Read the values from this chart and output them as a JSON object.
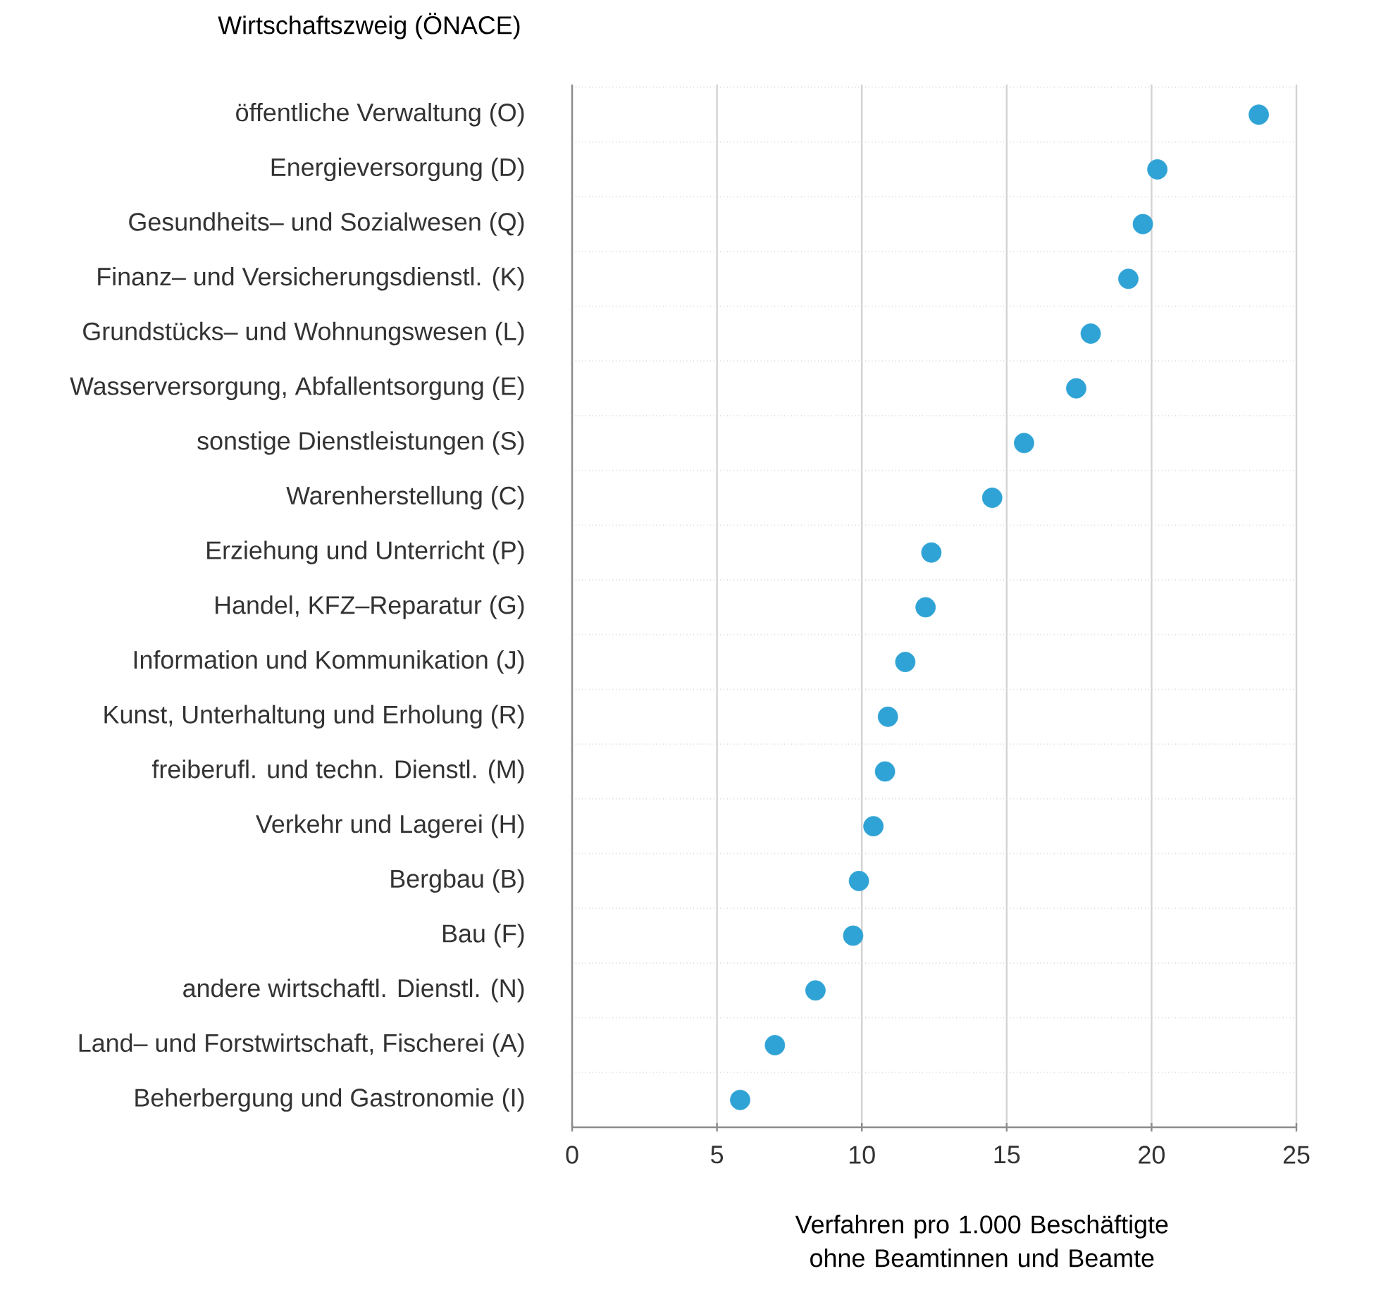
{
  "chart_data": {
    "type": "scatter",
    "orientation": "horizontal",
    "ylabel": "Wirtschaftszweig (ÖNACE)",
    "xlabel": "Verfahren pro 1.000 Beschäftigte ohne Beamtinnen und Beamte",
    "categories": [
      "öffentliche Verwaltung (O)",
      "Energieversorgung (D)",
      "Gesundheits– und Sozialwesen (Q)",
      "Finanz– und Versicherungsdienstl. (K)",
      "Grundstücks– und Wohnungswesen (L)",
      "Wasserversorgung, Abfallentsorgung (E)",
      "sonstige Dienstleistungen (S)",
      "Warenherstellung (C)",
      "Erziehung und Unterricht (P)",
      "Handel, KFZ–Reparatur (G)",
      "Information und Kommunikation (J)",
      "Kunst, Unterhaltung und Erholung (R)",
      "freiberufl. und techn. Dienstl. (M)",
      "Verkehr und Lagerei (H)",
      "Bergbau (B)",
      "Bau (F)",
      "andere wirtschaftl. Dienstl. (N)",
      "Land– und Forstwirtschaft, Fischerei (A)",
      "Beherbergung und Gastronomie (I)"
    ],
    "values": [
      23.7,
      20.2,
      19.7,
      19.2,
      17.9,
      17.4,
      15.6,
      14.5,
      12.4,
      12.2,
      11.5,
      10.9,
      10.8,
      10.4,
      9.9,
      9.7,
      8.4,
      7.0,
      5.8
    ],
    "color": "#2fa3d5",
    "marker": "circle",
    "grid": "x",
    "xlim": [
      0,
      25
    ],
    "xticks": [
      0,
      5,
      10,
      15,
      20,
      25
    ]
  }
}
